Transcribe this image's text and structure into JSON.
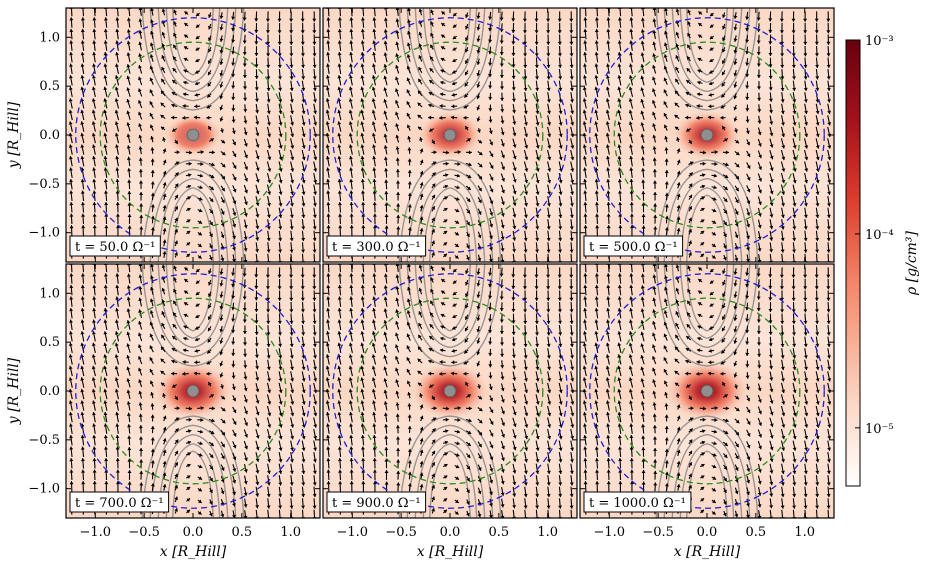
{
  "chart_data": {
    "type": "heatmap",
    "description_of_layout": "2 rows x 3 columns of density maps with streamlines, velocity arrows, dashed Hill (blue) and Bondi-like (green) circles, and a shared log colorbar",
    "x_label": "x [R_Hill]",
    "y_label": "y [R_Hill]",
    "xlim": [
      -1.3,
      1.3
    ],
    "ylim": [
      -1.3,
      1.3
    ],
    "x_ticks": [
      "−1.0",
      "−0.5",
      "0.0",
      "0.5",
      "1.0"
    ],
    "y_ticks": [
      "1.0",
      "0.5",
      "0.0",
      "−0.5",
      "−1.0"
    ],
    "x_tick_values": [
      -1.0,
      -0.5,
      0.0,
      0.5,
      1.0
    ],
    "y_tick_values": [
      1.0,
      0.5,
      0.0,
      -0.5,
      -1.0
    ],
    "circles": [
      {
        "name": "blue-dashed-circle",
        "radius": 1.2,
        "color": "#1f1fd6"
      },
      {
        "name": "green-dashed-circle",
        "radius": 0.95,
        "color": "#2a8a1a"
      }
    ],
    "planet_radius": 0.06,
    "panels": [
      {
        "label": "t = 50.0 Ω⁻¹",
        "time": 50.0,
        "core_radius": 0.22,
        "core_peak": 0.55
      },
      {
        "label": "t = 300.0 Ω⁻¹",
        "time": 300.0,
        "core_radius": 0.25,
        "core_peak": 0.75
      },
      {
        "label": "t = 500.0 Ω⁻¹",
        "time": 500.0,
        "core_radius": 0.26,
        "core_peak": 0.8
      },
      {
        "label": "t = 700.0 Ω⁻¹",
        "time": 700.0,
        "core_radius": 0.3,
        "core_peak": 0.85
      },
      {
        "label": "t = 900.0 Ω⁻¹",
        "time": 900.0,
        "core_radius": 0.3,
        "core_peak": 0.88
      },
      {
        "label": "t = 1000.0 Ω⁻¹",
        "time": 1000.0,
        "core_radius": 0.32,
        "core_peak": 0.9
      }
    ],
    "colorbar": {
      "label": "ρ [g/cm³]",
      "scale": "log",
      "ticks": [
        "10⁻³",
        "10⁻⁴",
        "10⁻⁵"
      ],
      "tick_exponents": [
        -3,
        -4,
        -5
      ],
      "range_exponents": [
        -5.3,
        -3
      ],
      "colors": [
        "#ffffff",
        "#fbd9c6",
        "#f4876a",
        "#d93a2b",
        "#a3121c",
        "#67000d"
      ]
    }
  }
}
